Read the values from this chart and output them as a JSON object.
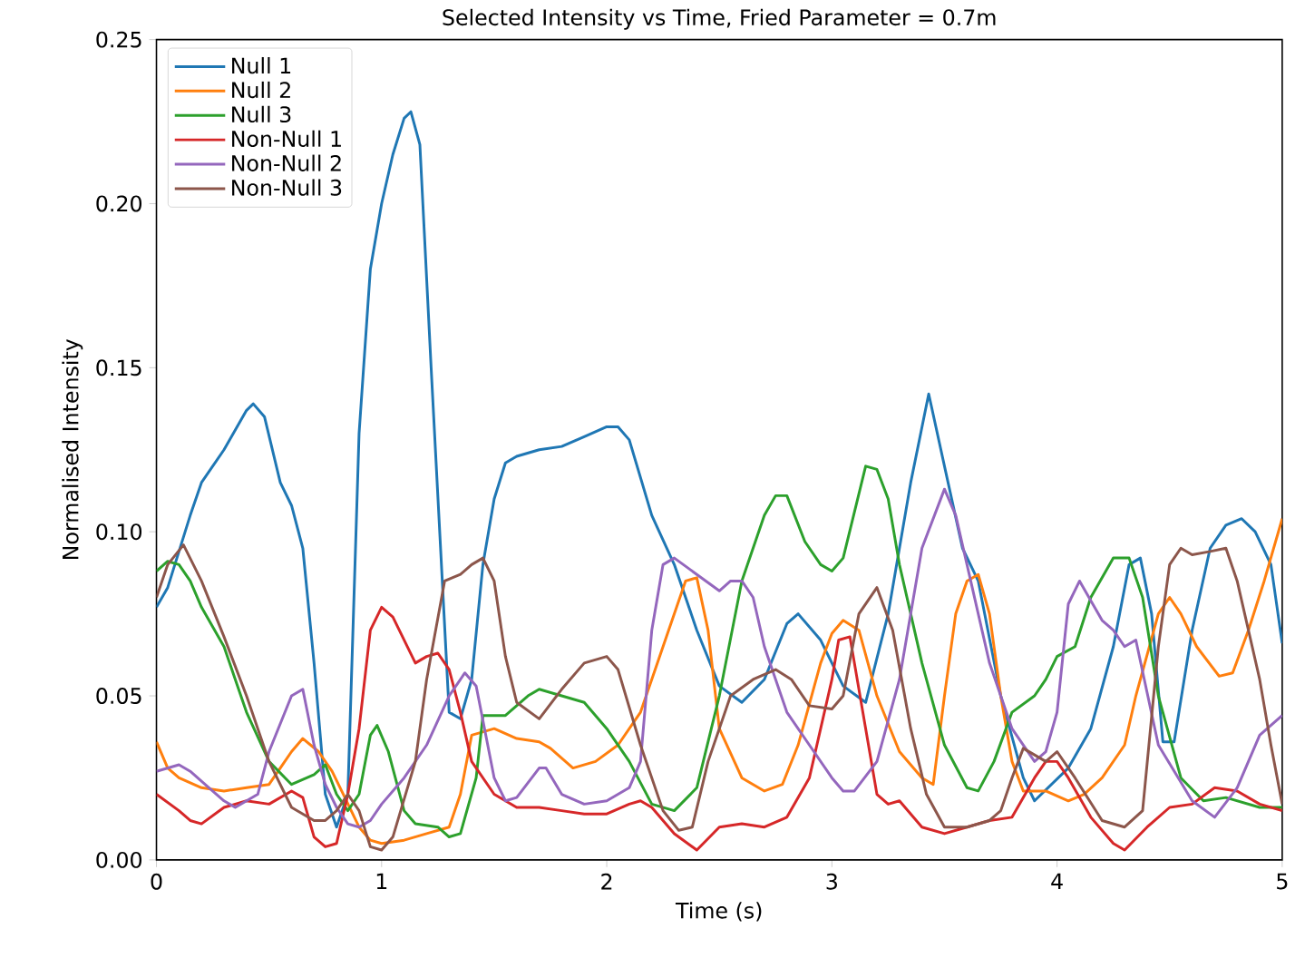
{
  "chart_data": {
    "type": "line",
    "title": "Selected Intensity vs Time, Fried Parameter = 0.7m",
    "xlabel": "Time (s)",
    "ylabel": "Normalised Intensity",
    "xlim": [
      0,
      5
    ],
    "xticks": [
      0,
      1,
      2,
      3,
      4,
      5
    ],
    "ylim": [
      0,
      0.25
    ],
    "yticks": [
      {
        "value": 0,
        "label": "0.00"
      },
      {
        "value": 0.05,
        "label": "0.05"
      },
      {
        "value": 0.1,
        "label": "0.10"
      },
      {
        "value": 0.15,
        "label": "0.15"
      },
      {
        "value": 0.2,
        "label": "0.20"
      },
      {
        "value": 0.25,
        "label": "0.25"
      }
    ],
    "legend": "top left",
    "series": [
      {
        "name": "Null 1",
        "color": "#1f77b4",
        "x": [
          0,
          0.05,
          0.15,
          0.2,
          0.3,
          0.4,
          0.43,
          0.48,
          0.55,
          0.6,
          0.65,
          0.7,
          0.75,
          0.8,
          0.85,
          0.9,
          0.95,
          1.0,
          1.05,
          1.1,
          1.13,
          1.17,
          1.22,
          1.3,
          1.35,
          1.4,
          1.45,
          1.5,
          1.55,
          1.6,
          1.7,
          1.8,
          1.9,
          2.0,
          2.05,
          2.1,
          2.2,
          2.3,
          2.4,
          2.5,
          2.6,
          2.7,
          2.8,
          2.85,
          2.95,
          3.05,
          3.15,
          3.25,
          3.35,
          3.43,
          3.5,
          3.58,
          3.65,
          3.75,
          3.85,
          3.9,
          4.05,
          4.15,
          4.25,
          4.32,
          4.37,
          4.42,
          4.47,
          4.52,
          4.6,
          4.68,
          4.75,
          4.82,
          4.88,
          4.95,
          5.0
        ],
        "values": [
          0.077,
          0.083,
          0.105,
          0.115,
          0.125,
          0.137,
          0.139,
          0.135,
          0.115,
          0.108,
          0.095,
          0.06,
          0.02,
          0.01,
          0.02,
          0.13,
          0.18,
          0.2,
          0.215,
          0.226,
          0.228,
          0.218,
          0.15,
          0.045,
          0.043,
          0.055,
          0.09,
          0.11,
          0.121,
          0.123,
          0.125,
          0.126,
          0.129,
          0.132,
          0.132,
          0.128,
          0.105,
          0.09,
          0.07,
          0.053,
          0.048,
          0.055,
          0.072,
          0.075,
          0.067,
          0.053,
          0.048,
          0.075,
          0.115,
          0.142,
          0.12,
          0.095,
          0.085,
          0.05,
          0.025,
          0.018,
          0.028,
          0.04,
          0.065,
          0.09,
          0.092,
          0.075,
          0.036,
          0.036,
          0.07,
          0.095,
          0.102,
          0.104,
          0.1,
          0.09,
          0.066
        ]
      },
      {
        "name": "Null 2",
        "color": "#ff7f0e",
        "x": [
          0,
          0.05,
          0.1,
          0.2,
          0.3,
          0.4,
          0.5,
          0.55,
          0.6,
          0.65,
          0.72,
          0.78,
          0.83,
          0.9,
          0.95,
          1.0,
          1.1,
          1.2,
          1.3,
          1.35,
          1.4,
          1.5,
          1.6,
          1.7,
          1.75,
          1.85,
          1.95,
          2.05,
          2.15,
          2.25,
          2.35,
          2.4,
          2.45,
          2.5,
          2.6,
          2.7,
          2.78,
          2.85,
          2.95,
          3.0,
          3.05,
          3.12,
          3.2,
          3.3,
          3.4,
          3.45,
          3.5,
          3.55,
          3.6,
          3.65,
          3.7,
          3.75,
          3.8,
          3.85,
          3.95,
          4.05,
          4.12,
          4.2,
          4.3,
          4.35,
          4.45,
          4.5,
          4.55,
          4.62,
          4.72,
          4.78,
          4.85,
          4.92,
          5.0
        ],
        "values": [
          0.036,
          0.028,
          0.025,
          0.022,
          0.021,
          0.022,
          0.023,
          0.028,
          0.033,
          0.037,
          0.033,
          0.027,
          0.02,
          0.01,
          0.006,
          0.005,
          0.006,
          0.008,
          0.01,
          0.02,
          0.038,
          0.04,
          0.037,
          0.036,
          0.034,
          0.028,
          0.03,
          0.035,
          0.045,
          0.065,
          0.085,
          0.086,
          0.07,
          0.04,
          0.025,
          0.021,
          0.023,
          0.035,
          0.06,
          0.069,
          0.073,
          0.07,
          0.05,
          0.033,
          0.025,
          0.023,
          0.05,
          0.075,
          0.085,
          0.087,
          0.075,
          0.05,
          0.03,
          0.021,
          0.021,
          0.018,
          0.02,
          0.025,
          0.035,
          0.05,
          0.075,
          0.08,
          0.075,
          0.065,
          0.056,
          0.057,
          0.07,
          0.085,
          0.104
        ]
      },
      {
        "name": "Null 3",
        "color": "#2ca02c",
        "x": [
          0,
          0.05,
          0.1,
          0.15,
          0.2,
          0.3,
          0.4,
          0.5,
          0.6,
          0.7,
          0.75,
          0.8,
          0.85,
          0.9,
          0.95,
          0.98,
          1.03,
          1.1,
          1.15,
          1.25,
          1.3,
          1.35,
          1.42,
          1.45,
          1.55,
          1.65,
          1.7,
          1.8,
          1.9,
          2.0,
          2.1,
          2.2,
          2.3,
          2.4,
          2.5,
          2.6,
          2.7,
          2.75,
          2.8,
          2.88,
          2.95,
          3.0,
          3.05,
          3.15,
          3.2,
          3.25,
          3.3,
          3.4,
          3.5,
          3.6,
          3.65,
          3.72,
          3.8,
          3.9,
          3.95,
          4.0,
          4.08,
          4.15,
          4.25,
          4.32,
          4.38,
          4.45,
          4.55,
          4.65,
          4.75,
          4.9,
          5.0
        ],
        "values": [
          0.088,
          0.091,
          0.09,
          0.085,
          0.077,
          0.065,
          0.045,
          0.03,
          0.023,
          0.026,
          0.029,
          0.02,
          0.015,
          0.02,
          0.038,
          0.041,
          0.033,
          0.015,
          0.011,
          0.01,
          0.007,
          0.008,
          0.025,
          0.044,
          0.044,
          0.05,
          0.052,
          0.05,
          0.048,
          0.04,
          0.03,
          0.017,
          0.015,
          0.022,
          0.05,
          0.085,
          0.105,
          0.111,
          0.111,
          0.097,
          0.09,
          0.088,
          0.092,
          0.12,
          0.119,
          0.11,
          0.09,
          0.06,
          0.035,
          0.022,
          0.021,
          0.03,
          0.045,
          0.05,
          0.055,
          0.062,
          0.065,
          0.08,
          0.092,
          0.092,
          0.08,
          0.05,
          0.025,
          0.018,
          0.019,
          0.016,
          0.016
        ]
      },
      {
        "name": "Non-Null 1",
        "color": "#d62728",
        "x": [
          0,
          0.1,
          0.15,
          0.2,
          0.3,
          0.4,
          0.5,
          0.6,
          0.65,
          0.7,
          0.75,
          0.8,
          0.85,
          0.9,
          0.95,
          1.0,
          1.05,
          1.15,
          1.2,
          1.25,
          1.3,
          1.35,
          1.4,
          1.5,
          1.6,
          1.7,
          1.8,
          1.9,
          2.0,
          2.1,
          2.15,
          2.2,
          2.3,
          2.4,
          2.5,
          2.6,
          2.7,
          2.8,
          2.9,
          3.0,
          3.03,
          3.08,
          3.15,
          3.2,
          3.25,
          3.3,
          3.4,
          3.5,
          3.6,
          3.7,
          3.8,
          3.9,
          3.95,
          4.0,
          4.05,
          4.15,
          4.25,
          4.3,
          4.4,
          4.5,
          4.6,
          4.7,
          4.8,
          4.9,
          5.0
        ],
        "values": [
          0.02,
          0.015,
          0.012,
          0.011,
          0.016,
          0.018,
          0.017,
          0.021,
          0.019,
          0.007,
          0.004,
          0.005,
          0.02,
          0.04,
          0.07,
          0.077,
          0.074,
          0.06,
          0.062,
          0.063,
          0.058,
          0.045,
          0.03,
          0.02,
          0.016,
          0.016,
          0.015,
          0.014,
          0.014,
          0.017,
          0.018,
          0.016,
          0.008,
          0.003,
          0.01,
          0.011,
          0.01,
          0.013,
          0.025,
          0.055,
          0.067,
          0.068,
          0.04,
          0.02,
          0.017,
          0.018,
          0.01,
          0.008,
          0.01,
          0.012,
          0.013,
          0.025,
          0.03,
          0.03,
          0.025,
          0.013,
          0.005,
          0.003,
          0.01,
          0.016,
          0.017,
          0.022,
          0.021,
          0.017,
          0.015
        ]
      },
      {
        "name": "Non-Null 2",
        "color": "#9467bd",
        "x": [
          0,
          0.1,
          0.15,
          0.2,
          0.3,
          0.35,
          0.45,
          0.5,
          0.6,
          0.65,
          0.7,
          0.75,
          0.8,
          0.85,
          0.9,
          0.95,
          1.0,
          1.1,
          1.2,
          1.3,
          1.37,
          1.42,
          1.5,
          1.55,
          1.6,
          1.7,
          1.73,
          1.8,
          1.9,
          2.0,
          2.1,
          2.15,
          2.2,
          2.25,
          2.3,
          2.4,
          2.5,
          2.55,
          2.6,
          2.65,
          2.7,
          2.8,
          2.9,
          3.0,
          3.05,
          3.1,
          3.2,
          3.3,
          3.4,
          3.5,
          3.55,
          3.6,
          3.7,
          3.8,
          3.9,
          3.95,
          4.0,
          4.05,
          4.1,
          4.2,
          4.25,
          4.3,
          4.35,
          4.45,
          4.6,
          4.7,
          4.8,
          4.9,
          5.0
        ],
        "values": [
          0.027,
          0.029,
          0.027,
          0.024,
          0.018,
          0.016,
          0.02,
          0.033,
          0.05,
          0.052,
          0.035,
          0.023,
          0.016,
          0.011,
          0.01,
          0.012,
          0.017,
          0.025,
          0.035,
          0.05,
          0.057,
          0.053,
          0.025,
          0.018,
          0.019,
          0.028,
          0.028,
          0.02,
          0.017,
          0.018,
          0.022,
          0.03,
          0.07,
          0.09,
          0.092,
          0.087,
          0.082,
          0.085,
          0.085,
          0.08,
          0.065,
          0.045,
          0.035,
          0.025,
          0.021,
          0.021,
          0.03,
          0.055,
          0.095,
          0.113,
          0.105,
          0.09,
          0.06,
          0.04,
          0.03,
          0.033,
          0.045,
          0.078,
          0.085,
          0.073,
          0.07,
          0.065,
          0.067,
          0.035,
          0.018,
          0.013,
          0.022,
          0.038,
          0.044
        ]
      },
      {
        "name": "Non-Null 3",
        "color": "#8c564b",
        "x": [
          0,
          0.05,
          0.12,
          0.2,
          0.3,
          0.4,
          0.5,
          0.6,
          0.7,
          0.75,
          0.8,
          0.85,
          0.9,
          0.95,
          1.0,
          1.05,
          1.15,
          1.2,
          1.28,
          1.35,
          1.4,
          1.45,
          1.5,
          1.55,
          1.6,
          1.7,
          1.8,
          1.9,
          2.0,
          2.05,
          2.15,
          2.25,
          2.32,
          2.38,
          2.45,
          2.55,
          2.65,
          2.75,
          2.82,
          2.9,
          3.0,
          3.05,
          3.12,
          3.2,
          3.27,
          3.35,
          3.42,
          3.5,
          3.6,
          3.7,
          3.75,
          3.8,
          3.85,
          3.95,
          4.0,
          4.08,
          4.2,
          4.3,
          4.38,
          4.45,
          4.5,
          4.55,
          4.6,
          4.68,
          4.75,
          4.8,
          4.85,
          4.9,
          4.95,
          5.0
        ],
        "values": [
          0.08,
          0.09,
          0.096,
          0.085,
          0.068,
          0.05,
          0.03,
          0.016,
          0.012,
          0.012,
          0.015,
          0.02,
          0.015,
          0.004,
          0.003,
          0.007,
          0.03,
          0.055,
          0.085,
          0.087,
          0.09,
          0.092,
          0.085,
          0.062,
          0.048,
          0.043,
          0.052,
          0.06,
          0.062,
          0.058,
          0.035,
          0.015,
          0.009,
          0.01,
          0.03,
          0.05,
          0.055,
          0.058,
          0.055,
          0.047,
          0.046,
          0.05,
          0.075,
          0.083,
          0.07,
          0.04,
          0.02,
          0.01,
          0.01,
          0.012,
          0.015,
          0.025,
          0.034,
          0.03,
          0.033,
          0.025,
          0.012,
          0.01,
          0.015,
          0.065,
          0.09,
          0.095,
          0.093,
          0.094,
          0.095,
          0.085,
          0.07,
          0.055,
          0.035,
          0.017
        ]
      }
    ]
  }
}
